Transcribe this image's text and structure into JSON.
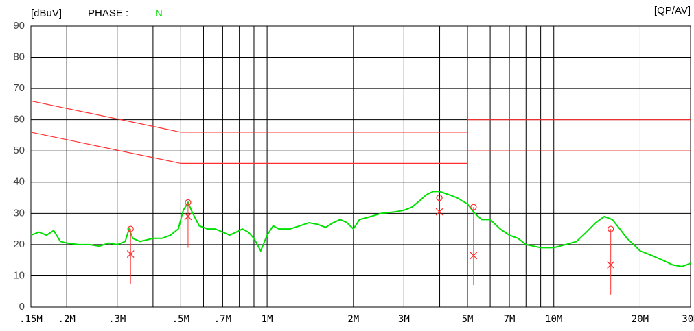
{
  "chart_data": {
    "type": "line",
    "y_unit": "[dBuV]",
    "phase_label": "PHASE :",
    "phase": "N",
    "mode": "[QP/AV]",
    "log_x": true,
    "grid": true,
    "xlim": [
      0.15,
      30
    ],
    "ylim": [
      0,
      90
    ],
    "yticks": [
      0,
      10,
      20,
      30,
      40,
      50,
      60,
      70,
      80,
      90
    ],
    "xticks": [
      {
        "value": 0.15,
        "label": ".15M"
      },
      {
        "value": 0.2,
        "label": ".2M"
      },
      {
        "value": 0.3,
        "label": ".3M"
      },
      {
        "value": 0.5,
        "label": ".5M"
      },
      {
        "value": 0.7,
        "label": ".7M"
      },
      {
        "value": 1,
        "label": "1M"
      },
      {
        "value": 2,
        "label": "2M"
      },
      {
        "value": 3,
        "label": "3M"
      },
      {
        "value": 5,
        "label": "5M"
      },
      {
        "value": 7,
        "label": "7M"
      },
      {
        "value": 10,
        "label": "10M"
      },
      {
        "value": 20,
        "label": "20M"
      },
      {
        "value": 30,
        "label": "30M"
      }
    ],
    "xminor": [
      0.4,
      0.6,
      0.8,
      0.9,
      4,
      6,
      8,
      9
    ],
    "series": [
      {
        "color": "#00e000",
        "x": [
          0.15,
          0.16,
          0.17,
          0.18,
          0.19,
          0.2,
          0.22,
          0.24,
          0.26,
          0.28,
          0.3,
          0.32,
          0.33,
          0.34,
          0.36,
          0.38,
          0.4,
          0.43,
          0.46,
          0.49,
          0.51,
          0.53,
          0.55,
          0.58,
          0.62,
          0.66,
          0.7,
          0.74,
          0.78,
          0.82,
          0.86,
          0.9,
          0.95,
          1.0,
          1.05,
          1.1,
          1.2,
          1.3,
          1.4,
          1.5,
          1.6,
          1.7,
          1.8,
          1.9,
          2.0,
          2.1,
          2.3,
          2.5,
          2.8,
          3.0,
          3.2,
          3.4,
          3.6,
          3.8,
          4.0,
          4.3,
          4.6,
          5.0,
          5.3,
          5.6,
          6.0,
          6.5,
          7.0,
          7.5,
          8.0,
          8.5,
          9.0,
          10,
          11,
          12,
          13,
          14,
          15,
          16,
          17,
          18,
          19,
          20,
          22,
          24,
          26,
          28,
          30
        ],
        "values": [
          23,
          24,
          23,
          24.5,
          21,
          20.5,
          20,
          20,
          19.5,
          20.5,
          20,
          21,
          25,
          22,
          21,
          21.5,
          22,
          22,
          23,
          25,
          31,
          33.5,
          30,
          26,
          25,
          25,
          24,
          23,
          24,
          25,
          24,
          22,
          18,
          23,
          26,
          25,
          25,
          26,
          27,
          26.5,
          25.5,
          27,
          28,
          27,
          25,
          28,
          29,
          30,
          30.5,
          31,
          32,
          34,
          36,
          37,
          37,
          36,
          35,
          33,
          30,
          28,
          28,
          25,
          23,
          22,
          20,
          19.5,
          19,
          19,
          20,
          21,
          24,
          27,
          29,
          28,
          25,
          22,
          20,
          18,
          16.5,
          15,
          13.5,
          13,
          14
        ]
      },
      {
        "color": "#ff3030",
        "x": [
          0.15,
          0.5,
          5,
          5,
          5,
          30
        ],
        "values": [
          66,
          56,
          56,
          null,
          60,
          60
        ]
      },
      {
        "color": "#ff3030",
        "x": [
          0.15,
          0.5,
          5,
          5,
          5,
          30
        ],
        "values": [
          56,
          46,
          46,
          null,
          50,
          50
        ]
      }
    ],
    "markers": {
      "color": "#ff3030",
      "x": [
        0.334,
        0.53,
        3.99,
        5.25,
        15.8
      ],
      "qp": [
        25,
        33.5,
        35,
        32,
        25
      ],
      "av": [
        17,
        29,
        30.5,
        16.5,
        13.5
      ],
      "stem_low": [
        7.5,
        19,
        21,
        7,
        4
      ]
    }
  }
}
